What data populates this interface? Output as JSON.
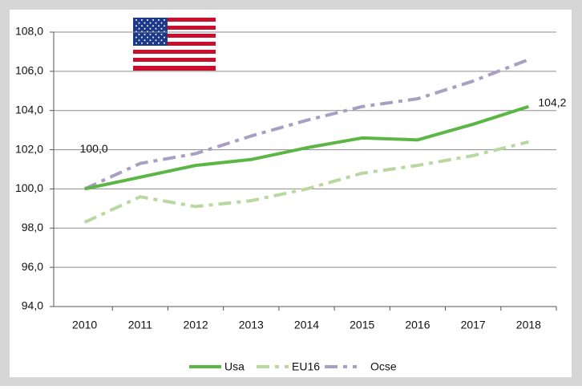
{
  "chart_data": {
    "type": "line",
    "categories": [
      "2010",
      "2011",
      "2012",
      "2013",
      "2014",
      "2015",
      "2016",
      "2017",
      "2018"
    ],
    "series": [
      {
        "name": "Usa",
        "color": "#5cb646",
        "style": "solid",
        "values": [
          100.0,
          100.6,
          101.2,
          101.5,
          102.1,
          102.6,
          102.5,
          103.3,
          104.2
        ],
        "value_labels": [
          "100,0",
          null,
          null,
          null,
          null,
          null,
          null,
          null,
          "104,2"
        ]
      },
      {
        "name": "EU16",
        "color": "#b8d8a0",
        "style": "dashdot",
        "values": [
          98.3,
          99.6,
          99.1,
          99.4,
          100.0,
          100.8,
          101.2,
          101.7,
          102.4
        ]
      },
      {
        "name": "Ocse",
        "color": "#a89fc2",
        "style": "dashdot",
        "values": [
          100.0,
          101.3,
          101.8,
          102.7,
          103.5,
          104.2,
          104.6,
          105.5,
          106.6
        ]
      }
    ],
    "ylim": [
      94,
      108
    ],
    "yticks": [
      {
        "value": 94,
        "label": "94,0"
      },
      {
        "value": 96,
        "label": "96,0"
      },
      {
        "value": 98,
        "label": "98,0"
      },
      {
        "value": 100,
        "label": "100,0"
      },
      {
        "value": 102,
        "label": "102,0"
      },
      {
        "value": 104,
        "label": "104,0"
      },
      {
        "value": 106,
        "label": "106,0"
      },
      {
        "value": 108,
        "label": "108,0"
      }
    ],
    "grid": true,
    "legend": "bottom"
  }
}
